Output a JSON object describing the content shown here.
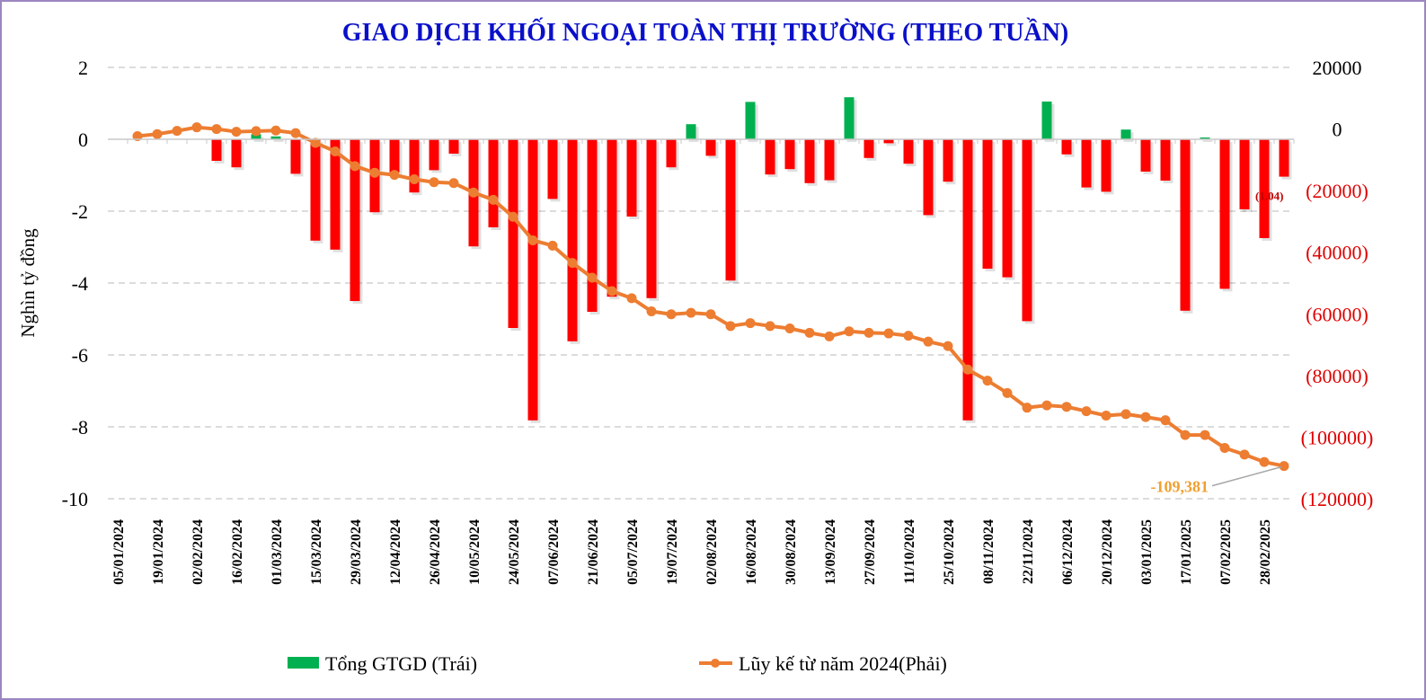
{
  "chart_data": {
    "type": "bar+line",
    "title": "GIAO DỊCH KHỐI NGOẠI TOÀN THỊ TRƯỜNG (THEO TUẦN)",
    "ylabel_left": "Nghìn tỷ đồng",
    "ylim_left": [
      -10,
      2
    ],
    "yticks_left": [
      "2",
      "0",
      "-2",
      "-4",
      "-6",
      "-8",
      "-10"
    ],
    "ylim_right": [
      -120000,
      20000
    ],
    "yticks_right": [
      "20000",
      "0",
      "(20000)",
      "(40000)",
      "(60000)",
      "(80000)",
      "(100000)",
      "(120000)"
    ],
    "grid": true,
    "legend_position": "bottom",
    "tick_labels": [
      "05/01/2024",
      "19/01/2024",
      "02/02/2024",
      "16/02/2024",
      "01/03/2024",
      "15/03/2024",
      "29/03/2024",
      "12/04/2024",
      "26/04/2024",
      "10/05/2024",
      "24/05/2024",
      "07/06/2024",
      "21/06/2024",
      "05/07/2024",
      "19/07/2024",
      "02/08/2024",
      "16/08/2024",
      "30/08/2024",
      "13/09/2024",
      "27/09/2024",
      "11/10/2024",
      "25/10/2024",
      "08/11/2024",
      "22/11/2024",
      "06/12/2024",
      "20/12/2024",
      "03/01/2025",
      "17/01/2025",
      "07/02/2025",
      "28/02/2025"
    ],
    "tick_every": 2,
    "series": [
      {
        "name": "Tổng GTGD (Trái)",
        "type": "bar",
        "axis": "left",
        "positive_color": "#00b050",
        "negative_color": "#ff0000",
        "values": [
          0,
          0,
          0,
          0,
          -0.6,
          -0.78,
          0.14,
          0.08,
          -0.96,
          -2.82,
          -3.07,
          -4.5,
          -2.03,
          -0.92,
          -1.48,
          -0.86,
          -0.4,
          -2.98,
          -2.45,
          -5.25,
          -7.82,
          -1.66,
          -5.62,
          -4.8,
          -4.38,
          -2.15,
          -4.42,
          -0.78,
          0.42,
          -0.46,
          -3.93,
          1.04,
          -0.98,
          -0.83,
          -1.22,
          -1.14,
          1.17,
          -0.52,
          -0.11,
          -0.68,
          -2.11,
          -1.18,
          -7.82,
          -3.6,
          -3.84,
          -5.06,
          1.05,
          -0.42,
          -1.34,
          -1.46,
          0.27,
          -0.9,
          -1.15,
          -4.77,
          0.05,
          -4.16,
          -1.95,
          -2.75,
          -1.04
        ]
      },
      {
        "name": "Lũy kế từ năm 2024(Phải)",
        "type": "line",
        "axis": "right",
        "color": "#ed7d31",
        "values": [
          -2300,
          -1640,
          -600,
          550,
          0,
          -880,
          -690,
          -490,
          -1340,
          -4490,
          -7260,
          -12030,
          -14210,
          -14900,
          -16320,
          -17270,
          -17550,
          -20610,
          -22980,
          -28500,
          -36130,
          -37850,
          -43480,
          -48240,
          -52630,
          -54910,
          -59190,
          -60140,
          -59660,
          -60140,
          -63950,
          -63000,
          -63950,
          -64720,
          -66150,
          -67300,
          -65670,
          -66150,
          -66350,
          -67090,
          -69010,
          -70440,
          -78070,
          -81670,
          -85680,
          -90450,
          -89690,
          -90160,
          -91590,
          -93020,
          -92540,
          -93500,
          -94530,
          -99310,
          -99310,
          -103510,
          -105680,
          -108090,
          -109381
        ]
      }
    ],
    "annotations": {
      "last_bar_label": "(1.04)",
      "last_cumulative_label": "-109,381"
    }
  }
}
